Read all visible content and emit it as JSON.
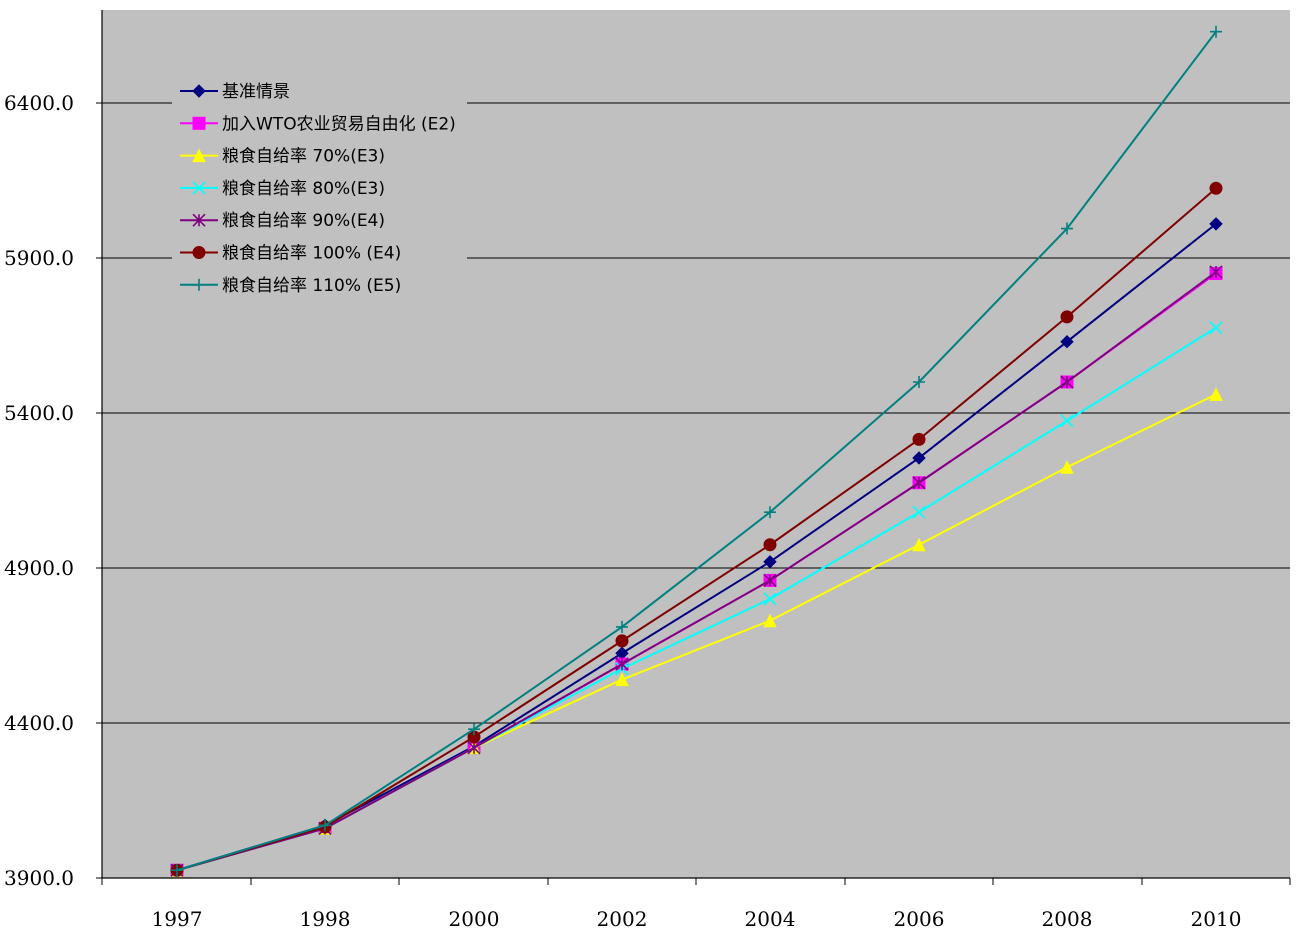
{
  "chart_data": {
    "type": "line",
    "title": "",
    "xlabel": "",
    "ylabel": "",
    "categories": [
      "1997",
      "1998",
      "2000",
      "2002",
      "2004",
      "2006",
      "2008",
      "2010"
    ],
    "y_ticks": [
      "3900.0",
      "4400.0",
      "4900.0",
      "5400.0",
      "5900.0",
      "6400.0"
    ],
    "ylim": [
      3900,
      6700
    ],
    "grid": "horizontal",
    "legend_position": "top-left",
    "plot_background": "#c0c0c0",
    "series": [
      {
        "name": "基准情景",
        "color": "#000080",
        "marker": "diamond",
        "values": [
          3925,
          4070,
          4325,
          4625,
          4920,
          5255,
          5630,
          6010
        ]
      },
      {
        "name": "加入WTO农业贸易自由化 (E2)",
        "color": "#ff00ff",
        "marker": "square",
        "values": [
          3925,
          4060,
          4320,
          4590,
          4860,
          5175,
          5500,
          5850
        ]
      },
      {
        "name": "粮食自给率 70%(E3)",
        "color": "#ffff00",
        "marker": "triangle",
        "values": [
          3925,
          4060,
          4320,
          4540,
          4730,
          4975,
          5225,
          5460
        ]
      },
      {
        "name": "粮食自给率 80%(E3)",
        "color": "#00ffff",
        "marker": "x",
        "values": [
          3925,
          4060,
          4320,
          4575,
          4800,
          5080,
          5375,
          5675
        ]
      },
      {
        "name": "粮食自给率 90%(E4)",
        "color": "#800080",
        "marker": "asterisk",
        "values": [
          3925,
          4060,
          4320,
          4590,
          4860,
          5175,
          5500,
          5855
        ]
      },
      {
        "name": "粮食自给率 100% (E4)",
        "color": "#800000",
        "marker": "circle",
        "values": [
          3925,
          4065,
          4355,
          4665,
          4975,
          5315,
          5710,
          6125
        ]
      },
      {
        "name": "粮食自给率 110% (E5)",
        "color": "#008080",
        "marker": "plus",
        "values": [
          3925,
          4070,
          4380,
          4710,
          5080,
          5500,
          5995,
          6630
        ]
      }
    ]
  }
}
